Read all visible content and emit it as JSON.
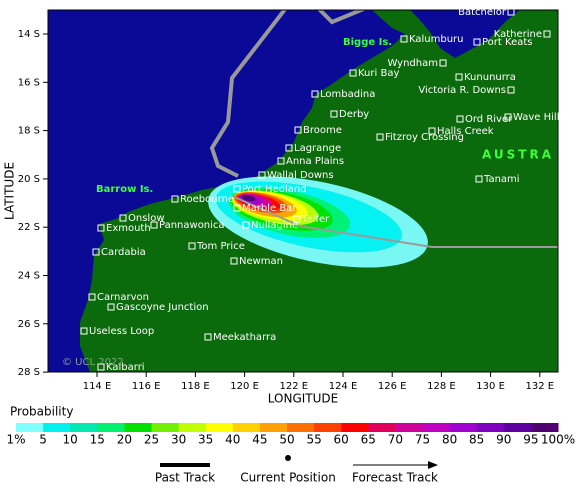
{
  "map": {
    "x_axis": {
      "label": "LONGITUDE",
      "ticks": [
        "114 E",
        "116 E",
        "118 E",
        "120 E",
        "122 E",
        "124 E",
        "126 E",
        "128 E",
        "130 E",
        "132 E"
      ]
    },
    "y_axis": {
      "label": "LATITUDE",
      "ticks": [
        "14 S",
        "16 S",
        "18 S",
        "20 S",
        "22 S",
        "24 S",
        "26 S",
        "28 S"
      ]
    },
    "regions": [
      "Bigge Is.",
      "Barrow Is.",
      "AUSTRA"
    ],
    "places": [
      "Batchelor",
      "Katherine",
      "Kalumburu",
      "Port Keats",
      "Wyndham",
      "Kuri Bay",
      "Kununurra",
      "Victoria R. Downs",
      "Lombadina",
      "Derby",
      "Ord River",
      "Wave Hill",
      "Broome",
      "Fitzroy Crossing",
      "Halls Creek",
      "Lagrange",
      "Anna Plains",
      "Wallal Downs",
      "Tanami",
      "Port Hedland",
      "Roebourne",
      "Marble Bar",
      "Telfer",
      "Onslow",
      "Exmouth",
      "Pannawonica",
      "Nullagine",
      "Cardabia",
      "Tom Price",
      "Newman",
      "Carnarvon",
      "Gascoyne Junction",
      "Useless Loop",
      "Meekatharra",
      "Kalbarri"
    ],
    "copyright": "© UCL 2022"
  },
  "legend": {
    "title": "Probability",
    "levels": [
      "1%",
      "5",
      "10",
      "15",
      "20",
      "25",
      "30",
      "35",
      "40",
      "45",
      "50",
      "55",
      "60",
      "65",
      "70",
      "75",
      "80",
      "85",
      "90",
      "95",
      "100%"
    ],
    "colors": [
      "#80ffff",
      "#00f0f0",
      "#00e8b0",
      "#00f070",
      "#00e000",
      "#70f000",
      "#c0ff00",
      "#ffff00",
      "#ffd000",
      "#ffa000",
      "#ff7000",
      "#ff4000",
      "#ff0000",
      "#e0005a",
      "#d0009a",
      "#c000c0",
      "#a000d0",
      "#8000c0",
      "#6000a0",
      "#500070"
    ],
    "keys": [
      "Past Track",
      "Current Position",
      "Forecast Track"
    ]
  }
}
